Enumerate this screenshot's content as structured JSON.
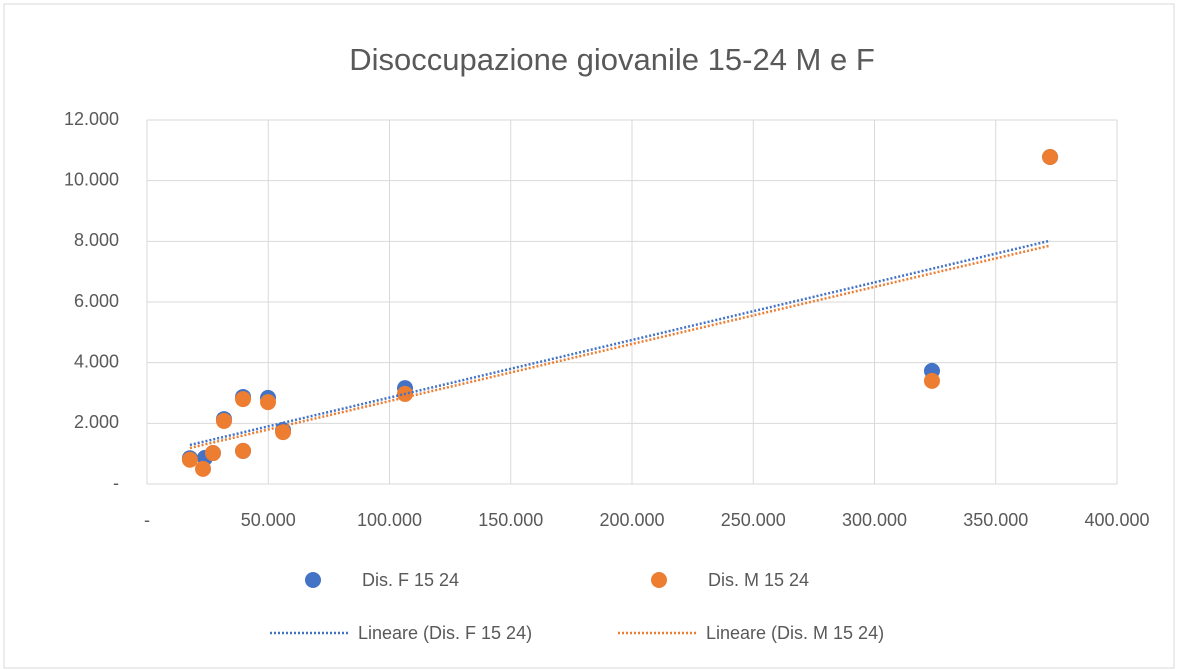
{
  "chart_data": {
    "type": "scatter",
    "title": "Disoccupazione giovanile 15-24 M e F",
    "series": [
      {
        "name": "Dis. F 15 24",
        "color": "#4472c4",
        "trendline_name": "Lineare (Dis. F 15 24)",
        "x": [
          17700,
          23900,
          27200,
          31750,
          39600,
          39600,
          49900,
          56100,
          106400,
          323700,
          372400
        ],
        "values": [
          850,
          860,
          1020,
          2140,
          2870,
          1090,
          2840,
          1780,
          3160,
          3730,
          10780
        ]
      },
      {
        "name": "Dis. M 15 24",
        "color": "#ed7d31",
        "trendline_name": "Lineare (Dis. M 15 24)",
        "x": [
          17700,
          23100,
          27200,
          31750,
          39600,
          39600,
          49900,
          56100,
          106400,
          323700,
          372400
        ],
        "values": [
          800,
          500,
          1020,
          2080,
          2800,
          1090,
          2700,
          1710,
          2970,
          3400,
          10780
        ]
      }
    ],
    "xlim": [
      0,
      400000
    ],
    "xticks": [
      {
        "value": 0,
        "label": "-"
      },
      {
        "value": 50000,
        "label": "50.000"
      },
      {
        "value": 100000,
        "label": "100.000"
      },
      {
        "value": 150000,
        "label": "150.000"
      },
      {
        "value": 200000,
        "label": "200.000"
      },
      {
        "value": 250000,
        "label": "250.000"
      },
      {
        "value": 300000,
        "label": "300.000"
      },
      {
        "value": 350000,
        "label": "350.000"
      },
      {
        "value": 400000,
        "label": "400.000"
      }
    ],
    "ylim": [
      0,
      12000
    ],
    "yticks": [
      {
        "value": 0,
        "label": "-"
      },
      {
        "value": 2000,
        "label": "2.000"
      },
      {
        "value": 4000,
        "label": "4.000"
      },
      {
        "value": 6000,
        "label": "6.000"
      },
      {
        "value": 8000,
        "label": "8.000"
      },
      {
        "value": 10000,
        "label": "10.000"
      },
      {
        "value": 12000,
        "label": "12.000"
      }
    ],
    "grid": true,
    "legend": "bottom"
  }
}
